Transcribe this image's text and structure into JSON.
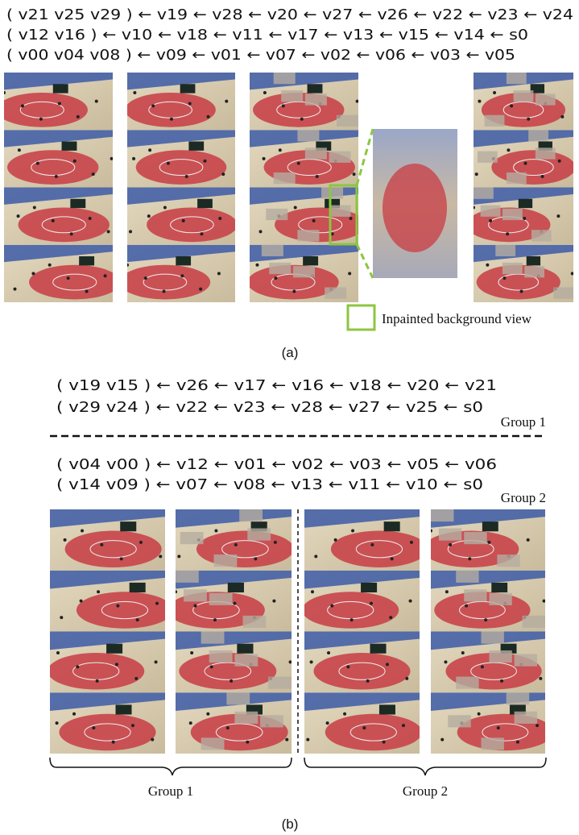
{
  "part_a": {
    "sequences": [
      "( v21 v25 v29 ) ← v19 ← v28 ← v20 ← v27 ← v26 ← v22 ← v23 ← v24",
      "( v12 v16 ) ← v10 ← v18 ← v11 ← v17 ← v13 ← v15 ← v14 ← s0",
      "( v00 v04 v08 ) ← v09 ← v01 ← v07 ← v02 ← v06 ← v03 ← v05"
    ],
    "legend": "Inpainted background view",
    "caption": "(a)"
  },
  "part_b": {
    "groups": [
      {
        "sequences": [
          "( v19 v15 ) ← v26 ← v17 ← v16 ← v18 ← v20 ← v21",
          "( v29 v24 ) ← v22 ← v23 ← v28 ← v27 ← v25 ← s0"
        ],
        "label": "Group 1"
      },
      {
        "sequences": [
          "( v04 v00 ) ← v12 ← v01 ← v02 ← v03 ← v05 ← v06",
          "( v14 v09 ) ← v07 ← v08 ← v13 ← v11 ← v10 ← s0"
        ],
        "label": "Group 2"
      }
    ],
    "brace_labels": [
      "Group 1",
      "Group 2"
    ],
    "caption": "(b)"
  }
}
